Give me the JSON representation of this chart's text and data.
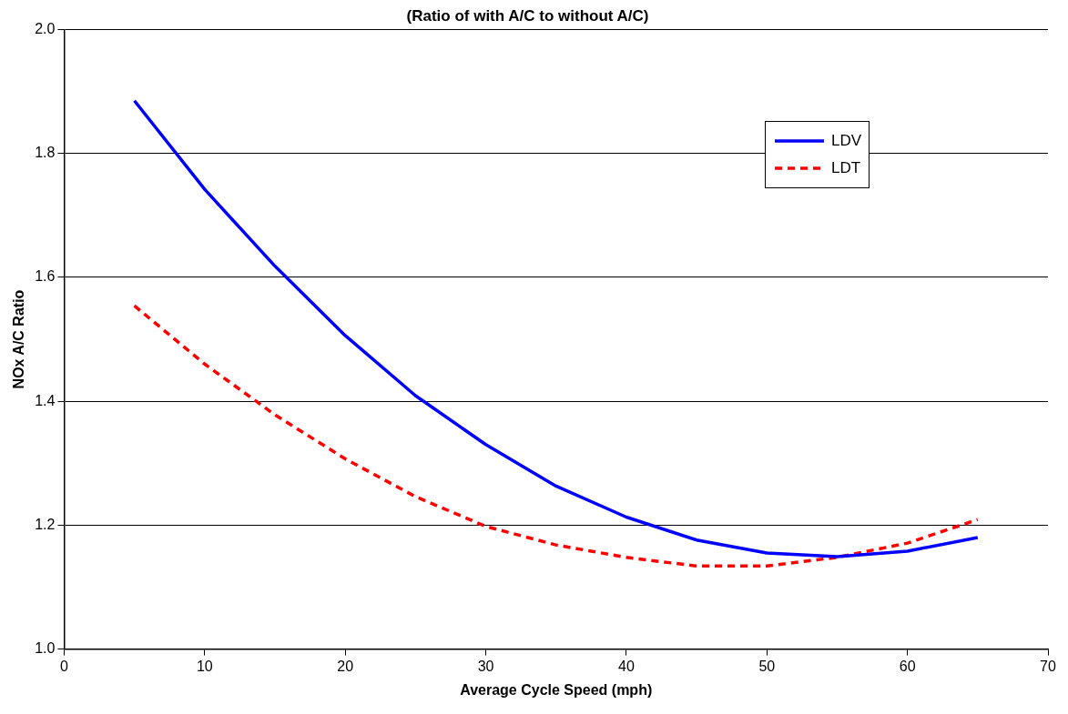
{
  "chart_data": {
    "type": "line",
    "title": "(Ratio of with A/C to without A/C)",
    "xlabel": "Average Cycle Speed (mph)",
    "ylabel": "NOx A/C Ratio",
    "x": [
      5,
      10,
      15,
      20,
      25,
      30,
      35,
      40,
      45,
      50,
      55,
      60,
      65
    ],
    "series": [
      {
        "name": "LDV",
        "color": "#0000ff",
        "line_style": "solid",
        "values": [
          1.885,
          1.742,
          1.618,
          1.506,
          1.409,
          1.33,
          1.263,
          1.213,
          1.176,
          1.155,
          1.149,
          1.158,
          1.18
        ]
      },
      {
        "name": "LDT",
        "color": "#ff0000",
        "line_style": "dashed",
        "values": [
          1.554,
          1.46,
          1.378,
          1.307,
          1.246,
          1.198,
          1.168,
          1.148,
          1.134,
          1.134,
          1.148,
          1.171,
          1.209
        ]
      }
    ],
    "xlim": [
      0,
      70
    ],
    "xticks": [
      0,
      10,
      20,
      30,
      40,
      50,
      60,
      70
    ],
    "ylim": [
      1.0,
      2.0
    ],
    "yticks": [
      {
        "value": 1.0,
        "label": "1.0"
      },
      {
        "value": 1.2,
        "label": "1.2"
      },
      {
        "value": 1.4,
        "label": "1.4"
      },
      {
        "value": 1.6,
        "label": "1.6"
      },
      {
        "value": 1.8,
        "label": "1.8"
      },
      {
        "value": 2.0,
        "label": "2.0"
      }
    ],
    "grid": "y",
    "legend": "top right",
    "marker": "none"
  }
}
